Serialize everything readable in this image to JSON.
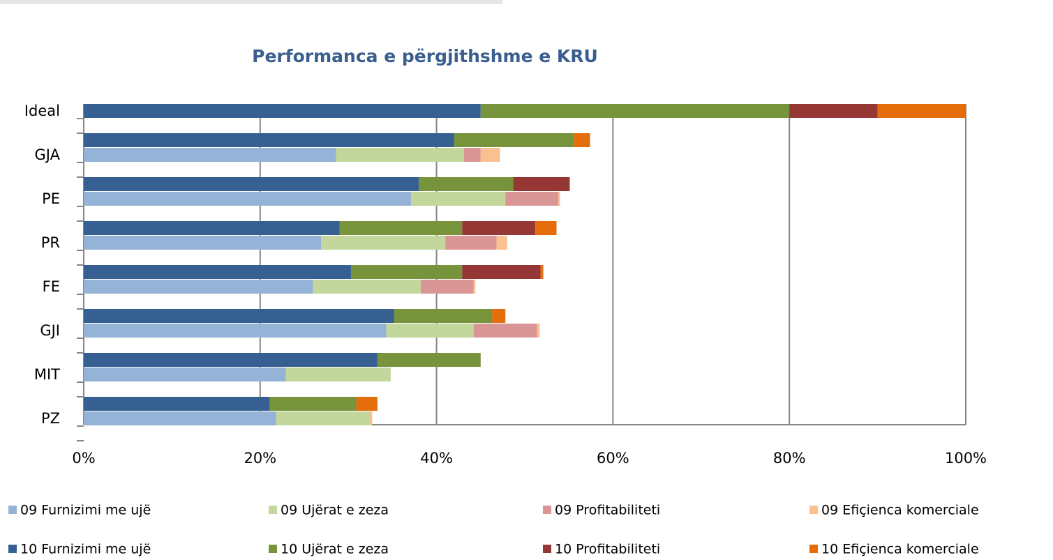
{
  "chart_data": {
    "type": "stacked_barh",
    "title": "Performanca e përgjithshme e KRU",
    "categories": [
      "Ideal",
      "GJA",
      "PE",
      "PR",
      "FE",
      "GJI",
      "MIT",
      "PZ"
    ],
    "series": [
      {
        "name": "09 Furnizimi me ujë",
        "color": "#95b3d7",
        "group": "09",
        "values": [
          null,
          28.6,
          37.1,
          26.9,
          26.0,
          34.3,
          22.9,
          21.8
        ]
      },
      {
        "name": "09 Ujërat e zeza",
        "color": "#c3d69b",
        "group": "09",
        "values": [
          null,
          14.5,
          10.7,
          14.1,
          12.2,
          9.9,
          11.9,
          10.6
        ]
      },
      {
        "name": "09 Profitabiliteti",
        "color": "#d99694",
        "group": "09",
        "values": [
          null,
          1.9,
          6.0,
          5.8,
          6.0,
          7.2,
          0,
          0
        ]
      },
      {
        "name": "09 Efiçienca komerciale",
        "color": "#fac090",
        "group": "09",
        "values": [
          null,
          2.2,
          0.2,
          1.2,
          0.2,
          0.3,
          0,
          0.3
        ]
      },
      {
        "name": "10 Furnizimi me ujë",
        "color": "#366092",
        "group": "10",
        "values": [
          45,
          42.0,
          38.0,
          29.0,
          30.3,
          35.2,
          33.3,
          21.1
        ]
      },
      {
        "name": "10 Ujërat e zeza",
        "color": "#77933c",
        "group": "10",
        "values": [
          35,
          13.6,
          10.7,
          13.9,
          12.6,
          11.1,
          11.7,
          9.8
        ]
      },
      {
        "name": "10 Profitabiliteti",
        "color": "#953735",
        "group": "10",
        "values": [
          10,
          0,
          6.4,
          8.3,
          8.9,
          0,
          0,
          0
        ]
      },
      {
        "name": "10 Efiçienca komerciale",
        "color": "#e46c0a",
        "group": "10",
        "values": [
          10,
          1.8,
          0,
          2.4,
          0.3,
          1.5,
          0,
          2.4
        ]
      }
    ],
    "xlim": [
      0,
      100
    ],
    "xticks": [
      {
        "value": 0,
        "label": "0%"
      },
      {
        "value": 20,
        "label": "20%"
      },
      {
        "value": 40,
        "label": "40%"
      },
      {
        "value": 60,
        "label": "60%"
      },
      {
        "value": 80,
        "label": "80%"
      },
      {
        "value": 100,
        "label": "100%"
      }
    ],
    "grid": true,
    "legend": "bottom"
  }
}
